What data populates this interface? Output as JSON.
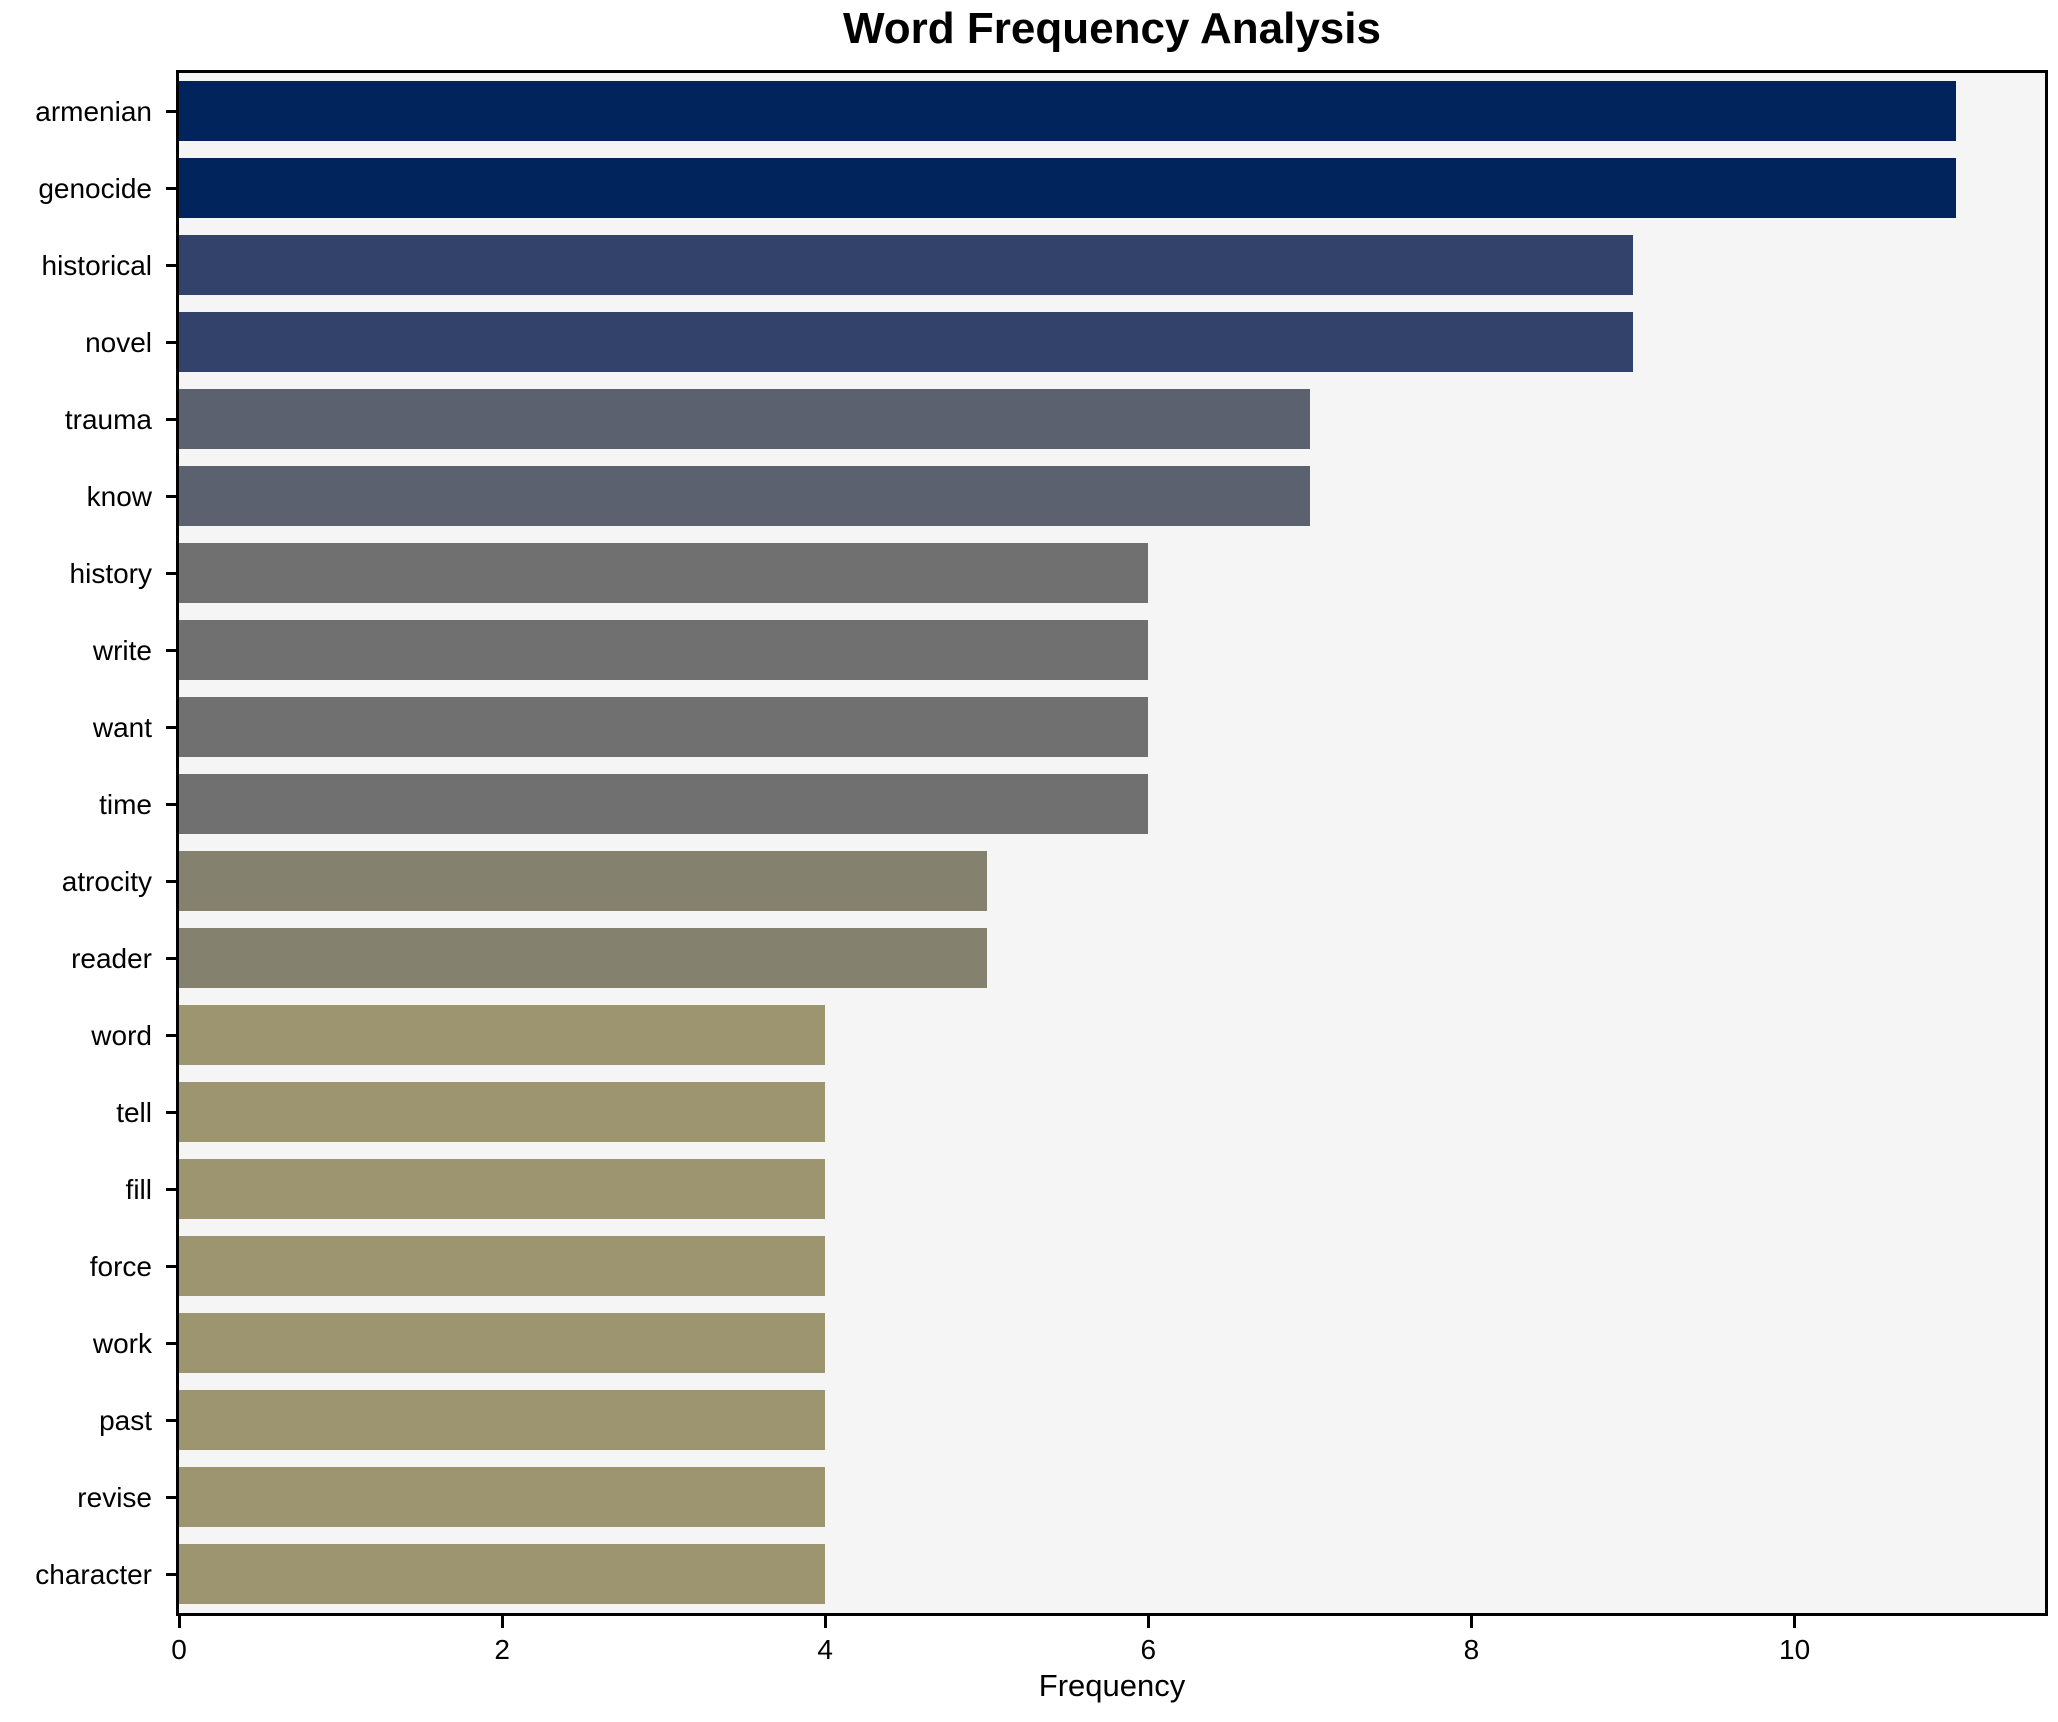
{
  "title": "Word Frequency Analysis",
  "xlabel": "Frequency",
  "chart_data": {
    "type": "bar",
    "orientation": "horizontal",
    "title": "Word Frequency Analysis",
    "xlabel": "Frequency",
    "ylabel": "",
    "categories": [
      "armenian",
      "genocide",
      "historical",
      "novel",
      "trauma",
      "know",
      "history",
      "write",
      "want",
      "time",
      "atrocity",
      "reader",
      "word",
      "tell",
      "fill",
      "force",
      "work",
      "past",
      "revise",
      "character"
    ],
    "values": [
      11,
      11,
      9,
      9,
      7,
      7,
      6,
      6,
      6,
      6,
      5,
      5,
      4,
      4,
      4,
      4,
      4,
      4,
      4,
      4
    ],
    "bar_colors": [
      "#02245c",
      "#02245c",
      "#32426a",
      "#32426a",
      "#5c6170",
      "#5c6170",
      "#707070",
      "#707070",
      "#707070",
      "#707070",
      "#84816f",
      "#84816f",
      "#9d9470",
      "#9d9470",
      "#9d9470",
      "#9d9470",
      "#9d9470",
      "#9d9470",
      "#9d9470",
      "#9d9470"
    ],
    "xlim": [
      0,
      11.55
    ],
    "xticks": [
      0,
      2,
      4,
      6,
      8,
      10
    ],
    "grid": false,
    "legend": null,
    "plot_background": "#f5f5f6",
    "figure_background": "#ffffff",
    "spine_color": "#000000"
  }
}
